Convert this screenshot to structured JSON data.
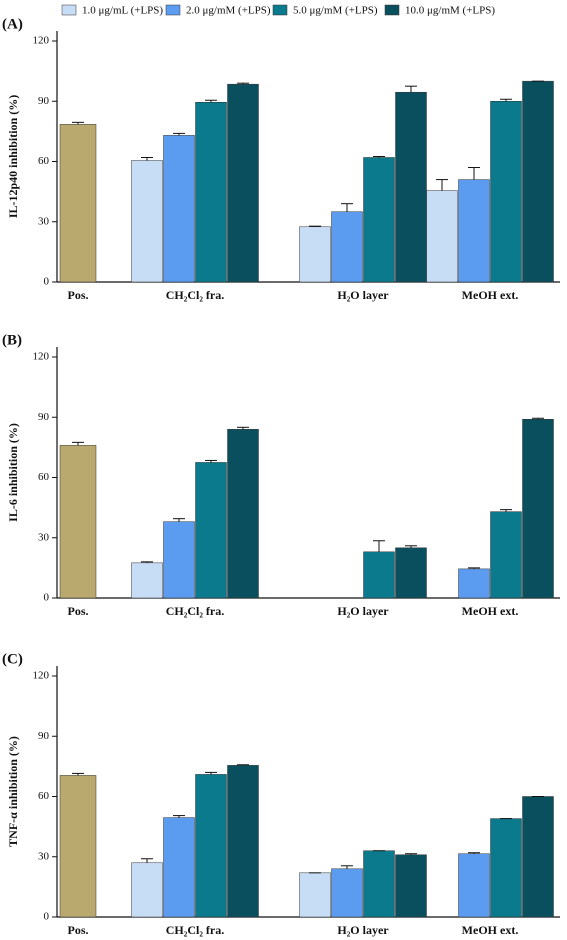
{
  "chart_data": [
    {
      "type": "bar",
      "panel_label": "(A)",
      "y_label": "IL-12p40 inhibition (%)",
      "categories": [
        "Pos.",
        "CH₂Cl₂ fra.",
        "H₂O layer",
        "MeOH ext."
      ],
      "control": {
        "color": "#b9a96e",
        "value": 78.5,
        "error": 1
      },
      "series": [
        {
          "name": "1.0  μg/mL (+LPS)",
          "color": "#c7dcf5",
          "values": [
            null,
            60.5,
            27.5,
            45.5
          ],
          "errors": [
            null,
            1.5,
            0.3,
            5.5
          ]
        },
        {
          "name": "2.0  μg/mM (+LPS)",
          "color": "#5b9bf0",
          "values": [
            null,
            73,
            35,
            51
          ],
          "errors": [
            null,
            1,
            4,
            6
          ]
        },
        {
          "name": "5.0  μg/mM (+LPS)",
          "color": "#0a7a8c",
          "values": [
            null,
            89.5,
            62,
            90
          ],
          "errors": [
            null,
            1,
            0.5,
            1
          ]
        },
        {
          "name": "10.0 μg/mM (+LPS)",
          "color": "#0a4f5e",
          "values": [
            null,
            98.5,
            94.5,
            100
          ],
          "errors": [
            null,
            0.5,
            3,
            0
          ]
        }
      ],
      "ylim": [
        0,
        125
      ],
      "yticks": [
        0,
        30,
        60,
        90,
        120
      ],
      "legend": true
    },
    {
      "type": "bar",
      "panel_label": "(B)",
      "y_label": "IL-6 inhibition (%)",
      "categories": [
        "Pos.",
        "CH₂Cl₂ fra.",
        "H₂O layer",
        "MeOH ext."
      ],
      "control": {
        "color": "#b9a96e",
        "value": 76,
        "error": 1.5
      },
      "series": [
        {
          "color": "#c7dcf5",
          "values": [
            null,
            17.5,
            null,
            null
          ],
          "errors": [
            null,
            0.5,
            null,
            null
          ]
        },
        {
          "color": "#5b9bf0",
          "values": [
            null,
            38,
            null,
            14.5
          ],
          "errors": [
            null,
            1.5,
            null,
            0.5
          ]
        },
        {
          "color": "#0a7a8c",
          "values": [
            null,
            67.5,
            23,
            43
          ],
          "errors": [
            null,
            1,
            5.5,
            1
          ]
        },
        {
          "color": "#0a4f5e",
          "values": [
            null,
            84,
            25,
            89
          ],
          "errors": [
            null,
            1,
            1,
            0.5
          ]
        }
      ],
      "ylim": [
        0,
        125
      ],
      "yticks": [
        0,
        30,
        60,
        90,
        120
      ],
      "legend": false
    },
    {
      "type": "bar",
      "panel_label": "(C)",
      "y_label": "TNF-α inhibition (%)",
      "categories": [
        "Pos.",
        "CH₂Cl₂ fra.",
        "H₂O layer",
        "MeOH ext."
      ],
      "control": {
        "color": "#b9a96e",
        "value": 70.5,
        "error": 1
      },
      "series": [
        {
          "color": "#c7dcf5",
          "values": [
            null,
            27,
            22,
            null
          ],
          "errors": [
            null,
            2,
            0,
            null
          ]
        },
        {
          "color": "#5b9bf0",
          "values": [
            null,
            49.5,
            24,
            31.5
          ],
          "errors": [
            null,
            1,
            1.5,
            0.5
          ]
        },
        {
          "color": "#0a7a8c",
          "values": [
            null,
            71,
            33,
            49
          ],
          "errors": [
            null,
            1,
            0,
            0
          ]
        },
        {
          "color": "#0a4f5e",
          "values": [
            null,
            75.5,
            31,
            60
          ],
          "errors": [
            null,
            0.3,
            0.5,
            0
          ]
        }
      ],
      "ylim": [
        0,
        125
      ],
      "yticks": [
        0,
        30,
        60,
        90,
        120
      ],
      "legend": false
    }
  ]
}
